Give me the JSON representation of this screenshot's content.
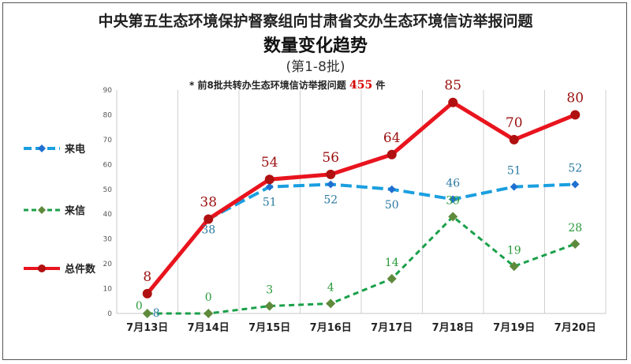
{
  "header": {
    "title": "中央第五生态环境保护督察组向甘肃省交办生态环境信访举报问题",
    "subtitle": "数量变化趋势",
    "batch": "(第1-8批)",
    "note_prefix": "* 前8批共转办生态环境信访举报问题",
    "note_total": "455",
    "note_suffix": "件"
  },
  "colors": {
    "phone": "#1a9fe0",
    "letter": "#1aa04a",
    "total": "#e8141e"
  },
  "chart_data": {
    "type": "line",
    "categories": [
      "7月13日",
      "7月14日",
      "7月15日",
      "7月16日",
      "7月17日",
      "7月18日",
      "7月19日",
      "7月20日"
    ],
    "ylim": [
      0,
      90
    ],
    "yticks": [
      0,
      10,
      20,
      30,
      40,
      50,
      60,
      70,
      80,
      90
    ],
    "series": [
      {
        "name": "来电",
        "values": [
          8,
          38,
          51,
          52,
          50,
          46,
          51,
          52
        ]
      },
      {
        "name": "来信",
        "values": [
          0,
          0,
          3,
          4,
          14,
          39,
          19,
          28
        ]
      },
      {
        "name": "总件数",
        "values": [
          8,
          38,
          54,
          56,
          64,
          85,
          70,
          80
        ]
      }
    ],
    "legend_position": "left",
    "grid": "vertical"
  }
}
